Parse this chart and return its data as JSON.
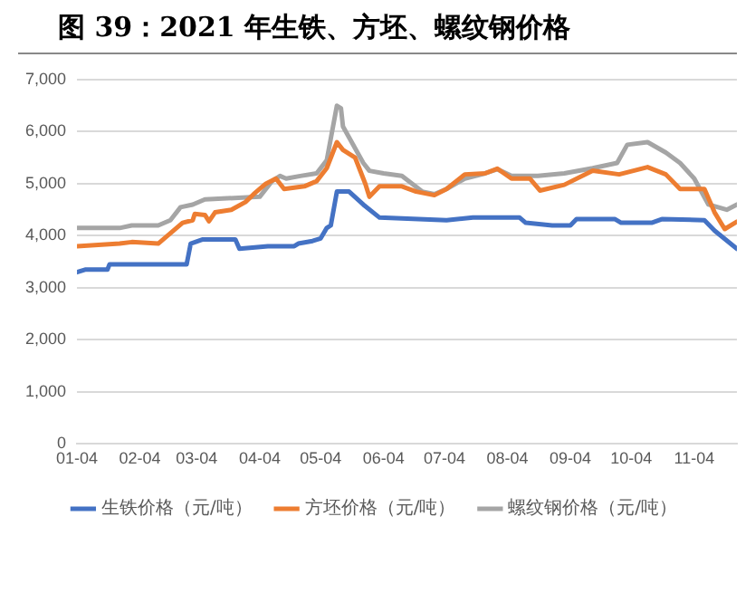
{
  "chart_data": {
    "type": "line",
    "title": "图 39：2021 年生铁、方坯、螺纹钢价格",
    "xlim": [
      "--01-04",
      "--11-25"
    ],
    "xticks": [
      {
        "value": "--01-04",
        "label": "01-04"
      },
      {
        "value": "--02-04",
        "label": "02-04"
      },
      {
        "value": "--03-04",
        "label": "03-04"
      },
      {
        "value": "--04-04",
        "label": "04-04"
      },
      {
        "value": "--05-04",
        "label": "05-04"
      },
      {
        "value": "--06-04",
        "label": "06-04"
      },
      {
        "value": "--07-04",
        "label": "07-04"
      },
      {
        "value": "--08-04",
        "label": "08-04"
      },
      {
        "value": "--09-04",
        "label": "09-04"
      },
      {
        "value": "--10-04",
        "label": "10-04"
      },
      {
        "value": "--11-04",
        "label": "11-04"
      }
    ],
    "ylim": [
      0,
      7000
    ],
    "yticks": [
      {
        "value": 0,
        "label": "0"
      },
      {
        "value": 1000,
        "label": "1,000"
      },
      {
        "value": 2000,
        "label": "2,000"
      },
      {
        "value": 3000,
        "label": "3,000"
      },
      {
        "value": 4000,
        "label": "4,000"
      },
      {
        "value": 5000,
        "label": "5,000"
      },
      {
        "value": 6000,
        "label": "6,000"
      },
      {
        "value": 7000,
        "label": "7,000"
      }
    ],
    "grid": "y",
    "legend": "bottom",
    "series": [
      {
        "name": "生铁价格（元/吨）",
        "color": "#4472c4",
        "x": [
          "--01-04",
          "--01-08",
          "--01-19",
          "--01-20",
          "--02-27",
          "--03-01",
          "--03-07",
          "--03-23",
          "--03-25",
          "--04-08",
          "--04-21",
          "--04-23",
          "--04-30",
          "--05-04",
          "--05-07",
          "--05-09",
          "--05-12",
          "--05-18",
          "--05-25",
          "--06-02",
          "--07-05",
          "--07-18",
          "--08-10",
          "--08-13",
          "--08-26",
          "--09-04",
          "--09-07",
          "--09-26",
          "--09-29",
          "--10-14",
          "--10-19",
          "--11-09",
          "--11-14",
          "--11-25"
        ],
        "values": [
          3300,
          3350,
          3350,
          3450,
          3450,
          3850,
          3930,
          3930,
          3750,
          3800,
          3800,
          3850,
          3900,
          3950,
          4150,
          4200,
          4850,
          4850,
          4600,
          4350,
          4300,
          4350,
          4350,
          4250,
          4200,
          4200,
          4320,
          4320,
          4250,
          4250,
          4320,
          4300,
          4100,
          3750
        ]
      },
      {
        "name": "方坯价格（元/吨）",
        "color": "#ed7d31",
        "x": [
          "--01-04",
          "--01-25",
          "--01-31",
          "--02-13",
          "--02-19",
          "--02-25",
          "--03-02",
          "--03-03",
          "--03-08",
          "--03-10",
          "--03-13",
          "--03-21",
          "--03-28",
          "--04-01",
          "--04-07",
          "--04-12",
          "--04-16",
          "--04-26",
          "--05-02",
          "--05-07",
          "--05-12",
          "--05-15",
          "--05-21",
          "--05-26",
          "--05-28",
          "--06-02",
          "--06-13",
          "--06-20",
          "--06-29",
          "--07-05",
          "--07-14",
          "--07-24",
          "--07-30",
          "--08-06",
          "--08-15",
          "--08-20",
          "--09-01",
          "--09-15",
          "--09-28",
          "--10-12",
          "--10-21",
          "--10-28",
          "--11-09",
          "--11-14",
          "--11-19",
          "--11-25"
        ],
        "values": [
          3800,
          3850,
          3880,
          3850,
          4050,
          4250,
          4300,
          4420,
          4400,
          4280,
          4450,
          4500,
          4650,
          4800,
          5000,
          5100,
          4900,
          4950,
          5050,
          5300,
          5800,
          5650,
          5500,
          5000,
          4750,
          4950,
          4950,
          4850,
          4780,
          4900,
          5180,
          5200,
          5290,
          5100,
          5100,
          4870,
          4980,
          5250,
          5180,
          5320,
          5180,
          4900,
          4900,
          4450,
          4130,
          4270
        ]
      },
      {
        "name": "螺纹钢价格（元/吨）",
        "color": "#a5a5a5",
        "x": [
          "--01-04",
          "--01-25",
          "--01-31",
          "--02-13",
          "--02-19",
          "--02-24",
          "--03-02",
          "--03-08",
          "--04-04",
          "--04-10",
          "--04-14",
          "--04-17",
          "--04-24",
          "--05-02",
          "--05-07",
          "--05-12",
          "--05-14",
          "--05-15",
          "--05-25",
          "--05-28",
          "--06-04",
          "--06-13",
          "--06-23",
          "--06-29",
          "--07-05",
          "--07-14",
          "--07-24",
          "--07-30",
          "--08-06",
          "--08-19",
          "--09-01",
          "--09-15",
          "--09-27",
          "--10-02",
          "--10-12",
          "--10-21",
          "--10-28",
          "--11-04",
          "--11-11",
          "--11-20",
          "--11-25"
        ],
        "values": [
          4150,
          4150,
          4200,
          4200,
          4300,
          4550,
          4600,
          4700,
          4750,
          5050,
          5150,
          5100,
          5150,
          5200,
          5450,
          6500,
          6450,
          6100,
          5400,
          5250,
          5200,
          5150,
          4850,
          4800,
          4900,
          5100,
          5200,
          5280,
          5150,
          5150,
          5200,
          5300,
          5400,
          5750,
          5800,
          5600,
          5400,
          5100,
          4600,
          4500,
          4600
        ]
      }
    ]
  }
}
